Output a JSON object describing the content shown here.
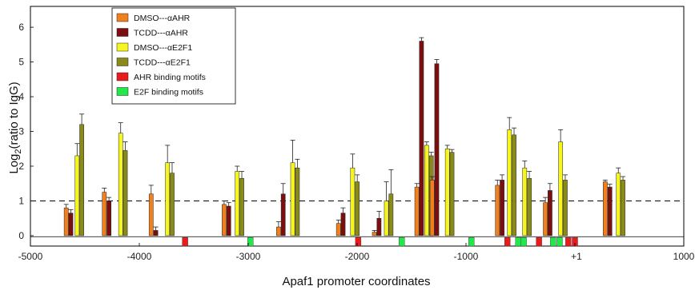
{
  "chart_data": {
    "type": "bar",
    "xlabel": "Apaf1 promoter coordinates",
    "ylabel_main": "Log",
    "ylabel_sub": "2",
    "ylabel_rest": "(ratio to IgG)",
    "xlim": [
      -5000,
      1000
    ],
    "ylim": [
      -0.3,
      6.6
    ],
    "x_ticks": [
      -5000,
      -4000,
      -3000,
      -2000,
      -1000,
      0,
      1000
    ],
    "x_tick_labels": [
      "-5000",
      "-4000",
      "-3000",
      "-2000",
      "-1000",
      "0",
      "1000"
    ],
    "y_ticks": [
      0,
      1,
      2,
      3,
      4,
      5,
      6
    ],
    "tss_label": "+1",
    "tss_x": 0,
    "reference_line_y": 1,
    "legend_position": "upper-left",
    "colors": {
      "DMSO_AHR": "#f07f1e",
      "TCDD_AHR": "#7b0f0f",
      "DMSO_E2F1": "#f5f520",
      "TCDD_E2F1": "#8a8a1a",
      "AHR_motif": "#e81c1c",
      "E2F_motif": "#22e84c"
    },
    "legend": [
      {
        "label": "DMSO---αAHR",
        "color": "#f07f1e"
      },
      {
        "label": "TCDD---αAHR",
        "color": "#7b0f0f"
      },
      {
        "label": "DMSO---αE2F1",
        "color": "#f5f520"
      },
      {
        "label": "TCDD---αE2F1",
        "color": "#8a8a1a"
      },
      {
        "label": "AHR binding motifs",
        "color": "#e81c1c"
      },
      {
        "label": "E2F binding motifs",
        "color": "#22e84c"
      }
    ],
    "groups": [
      {
        "ahr_x": -4650,
        "e2f_x": -4550,
        "ahr": [
          0.8,
          0.65
        ],
        "ahr_err": [
          0.1,
          0.1
        ],
        "e2f": [
          2.3,
          3.2
        ],
        "e2f_err": [
          0.35,
          0.3
        ]
      },
      {
        "ahr_x": -4300,
        "e2f_x": -4150,
        "ahr": [
          1.25,
          1.0
        ],
        "ahr_err": [
          0.12,
          0.1
        ],
        "e2f": [
          2.95,
          2.45
        ],
        "e2f_err": [
          0.3,
          0.25
        ]
      },
      {
        "ahr_x": -3870,
        "e2f_x": -3720,
        "ahr": [
          1.2,
          0.15
        ],
        "ahr_err": [
          0.25,
          0.1
        ],
        "e2f": [
          2.1,
          1.8
        ],
        "e2f_err": [
          0.5,
          0.3
        ]
      },
      {
        "ahr_x": -3200,
        "e2f_x": -3080,
        "ahr": [
          0.9,
          0.85
        ],
        "ahr_err": [
          0.1,
          0.1
        ],
        "e2f": [
          1.85,
          1.65
        ],
        "e2f_err": [
          0.15,
          0.2
        ]
      },
      {
        "ahr_x": -2700,
        "e2f_x": -2570,
        "ahr": [
          0.25,
          1.2
        ],
        "ahr_err": [
          0.15,
          0.3
        ],
        "e2f": [
          2.1,
          1.95
        ],
        "e2f_err": [
          0.65,
          0.25
        ]
      },
      {
        "ahr_x": -2150,
        "e2f_x": -2020,
        "ahr": [
          0.35,
          0.65
        ],
        "ahr_err": [
          0.1,
          0.15
        ],
        "e2f": [
          1.95,
          1.55
        ],
        "e2f_err": [
          0.4,
          0.2
        ]
      },
      {
        "ahr_x": -1820,
        "e2f_x": -1710,
        "ahr": [
          0.1,
          0.5
        ],
        "ahr_err": [
          0.05,
          0.2
        ],
        "e2f": [
          1.0,
          1.2
        ],
        "e2f_err": [
          0.55,
          0.7
        ]
      },
      {
        "ahr_x": -1430,
        "e2f_x": -1340,
        "ahr": [
          1.4,
          5.6
        ],
        "ahr_err": [
          0.1,
          0.1
        ],
        "e2f": [
          2.6,
          2.3
        ],
        "e2f_err": [
          0.1,
          0.1
        ]
      },
      {
        "ahr_x": -1290,
        "e2f_x": -1150,
        "ahr": [
          1.6,
          4.95
        ],
        "ahr_err": [
          0.1,
          0.12
        ],
        "e2f": [
          2.5,
          2.4
        ],
        "e2f_err": [
          0.1,
          0.08
        ]
      },
      {
        "ahr_x": -690,
        "e2f_x": -580,
        "ahr": [
          1.45,
          1.6
        ],
        "ahr_err": [
          0.15,
          0.15
        ],
        "e2f": [
          3.05,
          2.9
        ],
        "e2f_err": [
          0.35,
          0.2
        ]
      },
      {
        "ahr_x": -490,
        "e2f_x": -440,
        "ahr": [
          0.0,
          0.0
        ],
        "ahr_err": [
          0.0,
          0.0
        ],
        "e2f": [
          1.95,
          1.65
        ],
        "e2f_err": [
          0.2,
          0.2
        ]
      },
      {
        "ahr_x": -250,
        "e2f_x": -110,
        "ahr": [
          0.95,
          1.3
        ],
        "ahr_err": [
          0.15,
          0.2
        ],
        "e2f": [
          2.7,
          1.6
        ],
        "e2f_err": [
          0.35,
          0.15
        ]
      },
      {
        "ahr_x": 300,
        "e2f_x": 420,
        "ahr": [
          1.55,
          1.4
        ],
        "ahr_err": [
          0.05,
          0.08
        ],
        "e2f": [
          1.8,
          1.6
        ],
        "e2f_err": [
          0.15,
          0.1
        ]
      }
    ],
    "motifs": [
      {
        "type": "AHR",
        "x": -3580
      },
      {
        "type": "E2F",
        "x": -2980
      },
      {
        "type": "AHR",
        "x": -1990
      },
      {
        "type": "E2F",
        "x": -1590
      },
      {
        "type": "E2F",
        "x": -950
      },
      {
        "type": "AHR",
        "x": -620
      },
      {
        "type": "E2F",
        "x": -520
      },
      {
        "type": "E2F",
        "x": -470
      },
      {
        "type": "AHR",
        "x": -330
      },
      {
        "type": "E2F",
        "x": -200
      },
      {
        "type": "E2F",
        "x": -140
      },
      {
        "type": "AHR",
        "x": -60
      },
      {
        "type": "AHR",
        "x": 0
      }
    ]
  }
}
